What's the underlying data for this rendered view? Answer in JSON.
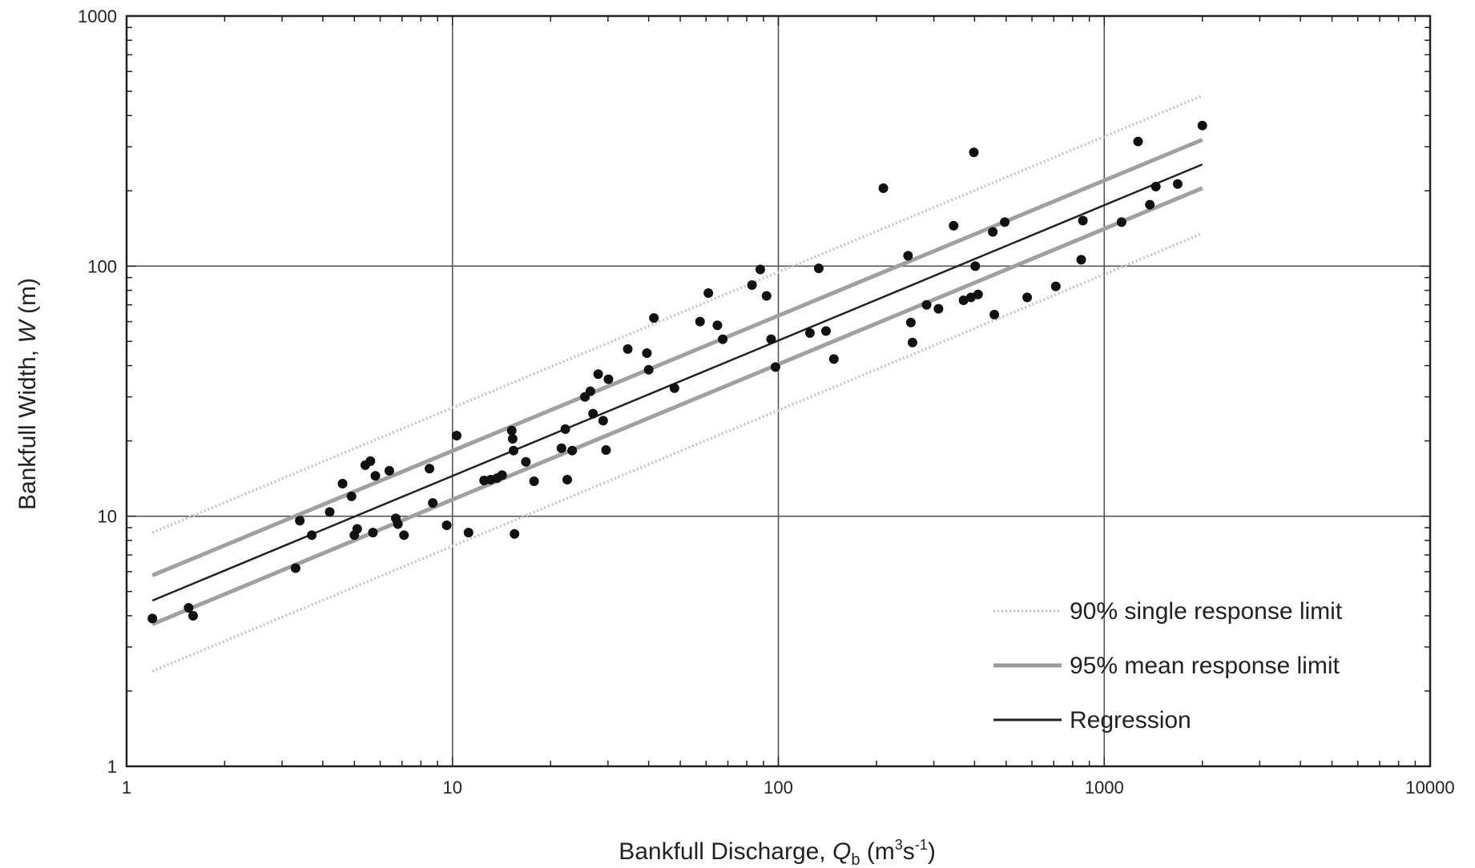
{
  "chart_data": {
    "type": "scatter",
    "title": "",
    "xlabel": {
      "pre": "Bankfull Discharge, ",
      "sym": "Q",
      "sub": "b",
      "unit_pre": " (m",
      "sup1": "3",
      "unit_mid": "s",
      "sup2": "-1",
      "unit_post": ")"
    },
    "ylabel": {
      "pre": "Bankfull Width, ",
      "sym": "W",
      "post": " (m)"
    },
    "x_scale": "log",
    "y_scale": "log",
    "xlim": [
      1,
      10000
    ],
    "ylim": [
      1,
      1000
    ],
    "x_ticks": [
      "1",
      "10",
      "100",
      "1000",
      "10000"
    ],
    "y_ticks": [
      "1",
      "10",
      "100",
      "1000"
    ],
    "grid": "major",
    "legend_position": "bottom-right",
    "legend": [
      {
        "label": "90% single response limit",
        "style": "dotted",
        "color": "#bdbdbd"
      },
      {
        "label": "95% mean response limit",
        "style": "solid",
        "color": "#9a9a9a"
      },
      {
        "label": "Regression",
        "style": "solid",
        "color": "#222222"
      }
    ],
    "lines": {
      "x_range": [
        1.2,
        2000
      ],
      "regression": [
        4.6,
        255
      ],
      "mean_upper": [
        5.8,
        320
      ],
      "mean_lower": [
        3.7,
        205
      ],
      "single_upper": [
        8.6,
        480
      ],
      "single_lower": [
        2.4,
        135
      ]
    },
    "points": [
      [
        1.2,
        3.9
      ],
      [
        1.55,
        4.3
      ],
      [
        1.6,
        4.0
      ],
      [
        3.3,
        6.2
      ],
      [
        3.4,
        9.6
      ],
      [
        3.7,
        8.4
      ],
      [
        4.2,
        10.4
      ],
      [
        4.6,
        13.5
      ],
      [
        4.9,
        12.0
      ],
      [
        5.0,
        8.4
      ],
      [
        5.1,
        8.9
      ],
      [
        5.4,
        16.0
      ],
      [
        5.6,
        16.6
      ],
      [
        5.7,
        8.6
      ],
      [
        5.8,
        14.5
      ],
      [
        6.4,
        15.2
      ],
      [
        6.7,
        9.8
      ],
      [
        6.8,
        9.3
      ],
      [
        7.1,
        8.4
      ],
      [
        8.5,
        15.5
      ],
      [
        8.7,
        11.3
      ],
      [
        9.6,
        9.2
      ],
      [
        10.3,
        21.0
      ],
      [
        11.2,
        8.6
      ],
      [
        12.5,
        13.9
      ],
      [
        13.1,
        14.0
      ],
      [
        13.7,
        14.2
      ],
      [
        14.2,
        14.6
      ],
      [
        15.2,
        22.0
      ],
      [
        15.3,
        20.4
      ],
      [
        15.4,
        18.3
      ],
      [
        15.5,
        8.5
      ],
      [
        16.8,
        16.5
      ],
      [
        17.8,
        13.8
      ],
      [
        21.6,
        18.7
      ],
      [
        22.2,
        22.3
      ],
      [
        22.5,
        14.0
      ],
      [
        23.3,
        18.3
      ],
      [
        25.5,
        30.0
      ],
      [
        26.5,
        31.6
      ],
      [
        27.0,
        25.7
      ],
      [
        28.0,
        37.0
      ],
      [
        29.0,
        24.1
      ],
      [
        29.6,
        18.4
      ],
      [
        30.1,
        35.3
      ],
      [
        34.5,
        46.6
      ],
      [
        39.5,
        44.9
      ],
      [
        40.0,
        38.5
      ],
      [
        41.5,
        62.0
      ],
      [
        48.0,
        32.5
      ],
      [
        57.5,
        60.0
      ],
      [
        61.0,
        78.0
      ],
      [
        65.0,
        58.0
      ],
      [
        67.5,
        51.0
      ],
      [
        83.0,
        84.0
      ],
      [
        88.0,
        97.0
      ],
      [
        92.0,
        76.0
      ],
      [
        95.0,
        51.0
      ],
      [
        98.0,
        39.5
      ],
      [
        125.0,
        54.0
      ],
      [
        133.0,
        98.0
      ],
      [
        140.0,
        55.0
      ],
      [
        148.0,
        42.5
      ],
      [
        210.0,
        205.0
      ],
      [
        250.0,
        110.0
      ],
      [
        255.0,
        59.5
      ],
      [
        258.0,
        49.5
      ],
      [
        285.0,
        70.0
      ],
      [
        310.0,
        67.5
      ],
      [
        345.0,
        145.0
      ],
      [
        370.0,
        73.0
      ],
      [
        390.0,
        75.0
      ],
      [
        398.0,
        285.0
      ],
      [
        402.0,
        100.0
      ],
      [
        410.0,
        77.0
      ],
      [
        455.0,
        137.0
      ],
      [
        460.0,
        64.0
      ],
      [
        495.0,
        150.0
      ],
      [
        580.0,
        75.0
      ],
      [
        710.0,
        83.0
      ],
      [
        850.0,
        106.0
      ],
      [
        860.0,
        152.0
      ],
      [
        1130.0,
        150.0
      ],
      [
        1270.0,
        315.0
      ],
      [
        1380.0,
        176.0
      ],
      [
        1440.0,
        208.0
      ],
      [
        1680.0,
        213.0
      ],
      [
        2000.0,
        365.0
      ]
    ]
  }
}
